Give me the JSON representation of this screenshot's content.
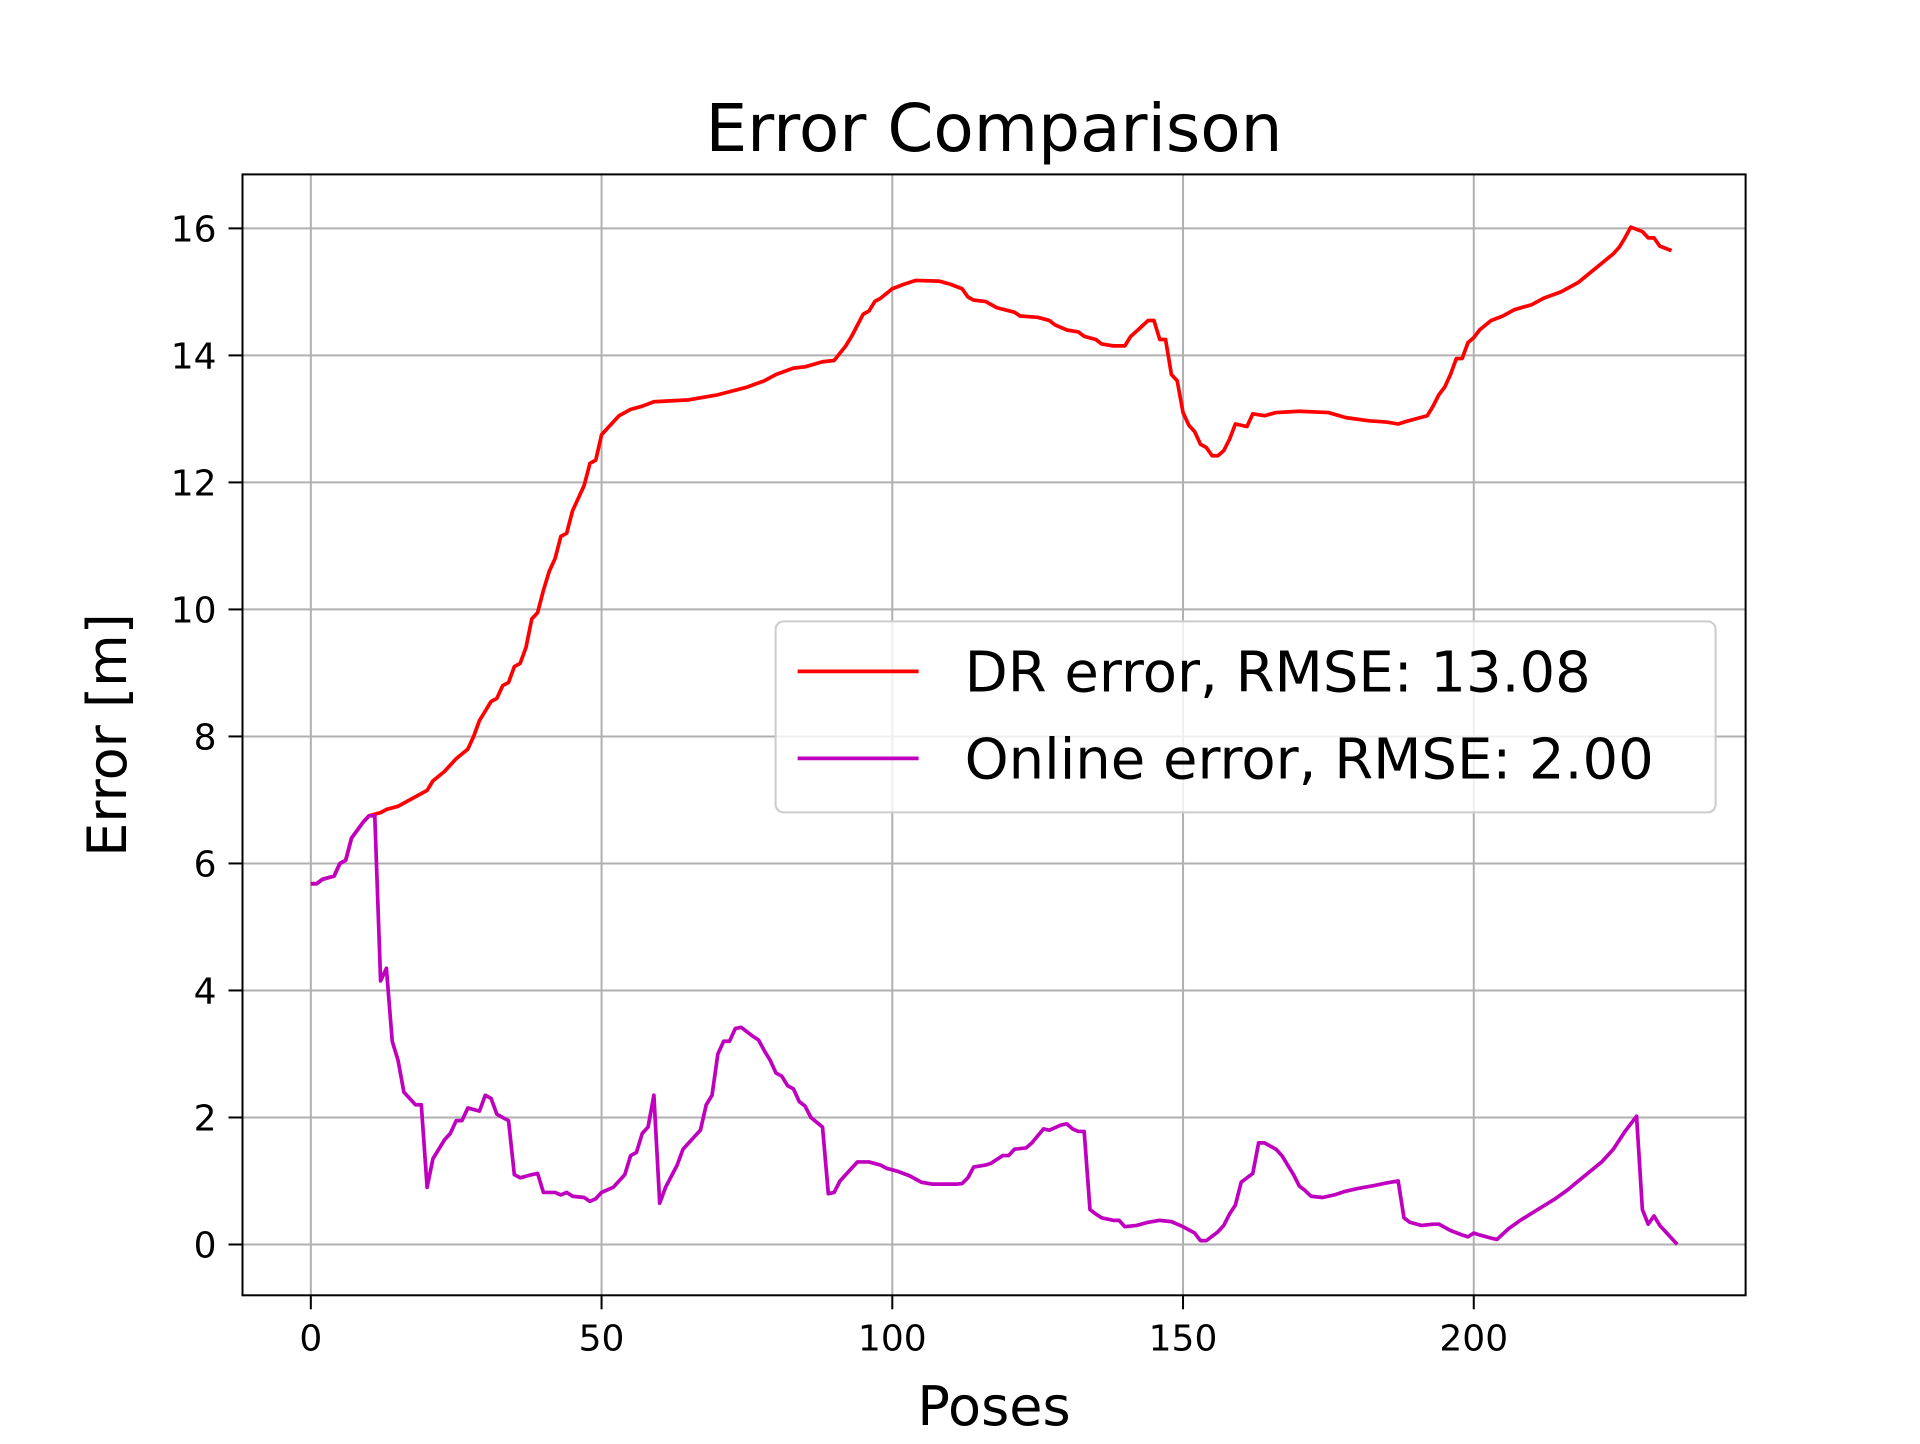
{
  "chart_data": {
    "type": "line",
    "title": "Error Comparison",
    "xlabel": "Poses",
    "ylabel": "Error [m]",
    "xlim": [
      -11.75,
      246.75
    ],
    "ylim": [
      -0.8,
      16.85
    ],
    "xticks": [
      0,
      50,
      100,
      150,
      200
    ],
    "yticks": [
      0,
      2,
      4,
      6,
      8,
      10,
      12,
      14,
      16
    ],
    "grid": true,
    "legend": "center right",
    "series": [
      {
        "name": "DR error, RMSE: 13.08",
        "color": "#ff0000",
        "x": [
          0,
          1,
          2,
          4,
          5,
          6,
          7,
          9,
          10,
          12,
          13,
          15,
          16,
          18,
          20,
          21,
          23,
          24,
          25,
          27,
          28,
          29,
          30,
          31,
          32,
          33,
          34,
          35,
          36,
          37,
          38,
          39,
          40,
          41,
          42,
          43,
          44,
          45,
          46,
          47,
          48,
          49,
          50,
          51,
          53,
          55,
          57,
          59,
          65,
          70,
          75,
          78,
          80,
          83,
          85,
          88,
          90,
          92,
          93,
          95,
          96,
          97,
          98,
          100,
          102,
          104,
          108,
          110,
          112,
          113,
          114,
          116,
          118,
          121,
          122,
          125,
          127,
          128,
          130,
          132,
          133,
          135,
          136,
          138,
          140,
          141,
          142,
          144,
          145,
          146,
          147,
          148,
          149,
          150,
          151,
          152,
          153,
          154,
          155,
          156,
          157,
          158,
          159,
          160,
          161,
          162,
          164,
          166,
          170,
          175,
          178,
          182,
          185,
          187,
          188,
          190,
          192,
          193,
          194,
          195,
          196,
          197,
          198,
          199,
          200,
          201,
          203,
          205,
          207,
          210,
          212,
          215,
          218,
          220,
          222,
          224,
          225,
          226,
          227,
          229,
          230,
          231,
          232,
          234
        ],
        "values": [
          5.68,
          5.68,
          5.75,
          5.8,
          6.0,
          6.05,
          6.4,
          6.65,
          6.75,
          6.8,
          6.85,
          6.9,
          6.95,
          7.05,
          7.15,
          7.3,
          7.45,
          7.55,
          7.65,
          7.8,
          8.0,
          8.25,
          8.4,
          8.55,
          8.6,
          8.8,
          8.85,
          9.1,
          9.15,
          9.4,
          9.85,
          9.95,
          10.3,
          10.6,
          10.8,
          11.15,
          11.2,
          11.55,
          11.75,
          11.95,
          12.3,
          12.35,
          12.75,
          12.85,
          13.05,
          13.15,
          13.2,
          13.27,
          13.3,
          13.38,
          13.5,
          13.6,
          13.7,
          13.8,
          13.82,
          13.9,
          13.92,
          14.15,
          14.3,
          14.65,
          14.7,
          14.85,
          14.9,
          15.05,
          15.12,
          15.18,
          15.17,
          15.12,
          15.05,
          14.92,
          14.87,
          14.85,
          14.75,
          14.68,
          14.62,
          14.6,
          14.55,
          14.48,
          14.4,
          14.37,
          14.3,
          14.25,
          14.18,
          14.15,
          14.15,
          14.3,
          14.38,
          14.55,
          14.55,
          14.25,
          14.25,
          13.7,
          13.6,
          13.1,
          12.9,
          12.8,
          12.6,
          12.55,
          12.42,
          12.42,
          12.5,
          12.68,
          12.92,
          12.9,
          12.88,
          13.08,
          13.05,
          13.1,
          13.12,
          13.1,
          13.02,
          12.97,
          12.95,
          12.92,
          12.95,
          13.0,
          13.05,
          13.2,
          13.38,
          13.5,
          13.7,
          13.95,
          13.95,
          14.2,
          14.28,
          14.4,
          14.55,
          14.62,
          14.72,
          14.8,
          14.9,
          15.0,
          15.15,
          15.3,
          15.45,
          15.6,
          15.7,
          15.85,
          16.02,
          15.95,
          15.85,
          15.85,
          15.72,
          15.65
        ]
      },
      {
        "name": "Online error, RMSE: 2.00",
        "color": "#bf00bf",
        "x": [
          0,
          1,
          2,
          4,
          5,
          6,
          7,
          9,
          10,
          11,
          12,
          13,
          14,
          15,
          16,
          18,
          19,
          20,
          21,
          23,
          24,
          25,
          26,
          27,
          29,
          30,
          31,
          32,
          34,
          35,
          36,
          38,
          39,
          40,
          42,
          43,
          44,
          45,
          47,
          48,
          49,
          50,
          52,
          53,
          54,
          55,
          56,
          57,
          58,
          59,
          60,
          61,
          63,
          64,
          66,
          67,
          68,
          69,
          70,
          71,
          72,
          73,
          74,
          75,
          76,
          77,
          78,
          79,
          80,
          81,
          82,
          83,
          84,
          85,
          86,
          88,
          89,
          90,
          91,
          93,
          94,
          96,
          98,
          99,
          101,
          103,
          105,
          107,
          109,
          111,
          112,
          113,
          114,
          116,
          117,
          119,
          120,
          121,
          123,
          124,
          126,
          127,
          129,
          130,
          131,
          132,
          133,
          134,
          135,
          136,
          138,
          139,
          140,
          142,
          144,
          146,
          148,
          150,
          152,
          153,
          154,
          156,
          157,
          158,
          159,
          160,
          161,
          162,
          163,
          164,
          166,
          167,
          169,
          170,
          171,
          172,
          174,
          176,
          178,
          180,
          183,
          185,
          187,
          188,
          189,
          191,
          193,
          194,
          196,
          198,
          199,
          200,
          201,
          203,
          204,
          206,
          208,
          211,
          214,
          216,
          218,
          220,
          222,
          224,
          226,
          228,
          229,
          230,
          231,
          232,
          234,
          235
        ],
        "values": [
          5.68,
          5.68,
          5.75,
          5.8,
          6.0,
          6.05,
          6.4,
          6.65,
          6.75,
          6.75,
          4.15,
          4.35,
          3.2,
          2.9,
          2.4,
          2.2,
          2.2,
          0.9,
          1.35,
          1.65,
          1.75,
          1.95,
          1.95,
          2.15,
          2.1,
          2.35,
          2.3,
          2.05,
          1.95,
          1.1,
          1.05,
          1.1,
          1.12,
          0.82,
          0.82,
          0.78,
          0.82,
          0.76,
          0.74,
          0.68,
          0.72,
          0.82,
          0.9,
          1.0,
          1.1,
          1.4,
          1.45,
          1.75,
          1.85,
          2.35,
          0.65,
          0.9,
          1.25,
          1.5,
          1.7,
          1.8,
          2.2,
          2.35,
          3.0,
          3.2,
          3.2,
          3.4,
          3.42,
          3.35,
          3.28,
          3.22,
          3.05,
          2.9,
          2.7,
          2.65,
          2.5,
          2.45,
          2.25,
          2.18,
          2.0,
          1.85,
          0.8,
          0.82,
          1.0,
          1.2,
          1.3,
          1.3,
          1.25,
          1.2,
          1.15,
          1.08,
          0.98,
          0.95,
          0.95,
          0.95,
          0.96,
          1.05,
          1.22,
          1.25,
          1.28,
          1.4,
          1.4,
          1.5,
          1.52,
          1.6,
          1.82,
          1.8,
          1.88,
          1.9,
          1.82,
          1.78,
          1.78,
          0.55,
          0.48,
          0.42,
          0.38,
          0.38,
          0.28,
          0.3,
          0.35,
          0.38,
          0.36,
          0.28,
          0.18,
          0.06,
          0.06,
          0.2,
          0.3,
          0.48,
          0.62,
          0.98,
          1.05,
          1.12,
          1.6,
          1.6,
          1.5,
          1.4,
          1.1,
          0.92,
          0.85,
          0.76,
          0.74,
          0.78,
          0.84,
          0.88,
          0.93,
          0.97,
          1.0,
          0.42,
          0.35,
          0.3,
          0.32,
          0.32,
          0.22,
          0.15,
          0.12,
          0.18,
          0.15,
          0.1,
          0.08,
          0.25,
          0.38,
          0.55,
          0.72,
          0.85,
          1.0,
          1.15,
          1.3,
          1.5,
          1.78,
          2.02,
          0.55,
          0.32,
          0.45,
          0.3,
          0.1,
          0.0
        ]
      }
    ]
  }
}
